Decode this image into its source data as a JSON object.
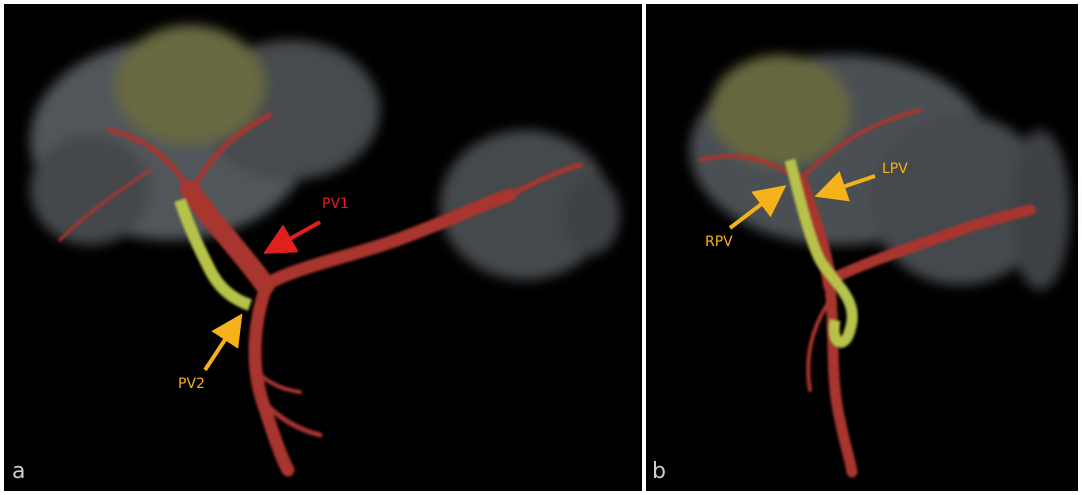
{
  "panels": [
    {
      "label": "a",
      "annotations": [
        "PV1",
        "PV2"
      ]
    },
    {
      "label": "b",
      "annotations": [
        "RPV",
        "LPV"
      ]
    }
  ]
}
